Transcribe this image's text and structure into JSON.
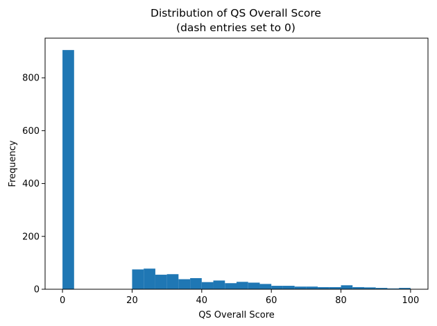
{
  "chart_data": {
    "type": "bar",
    "title": "Distribution of QS Overall Score",
    "subtitle": "(dash entries set to 0)",
    "xlabel": "QS Overall Score",
    "ylabel": "Frequency",
    "xlim": [
      -5,
      105
    ],
    "ylim": [
      0,
      950
    ],
    "xticks": [
      0,
      20,
      40,
      60,
      80,
      100
    ],
    "yticks": [
      0,
      200,
      400,
      600,
      800
    ],
    "bar_color": "#1f77b4",
    "grid": false,
    "bins": [
      {
        "x0": 0.0,
        "x1": 3.33,
        "value": 905
      },
      {
        "x0": 20.0,
        "x1": 23.33,
        "value": 75
      },
      {
        "x0": 23.33,
        "x1": 26.67,
        "value": 78
      },
      {
        "x0": 26.67,
        "x1": 30.0,
        "value": 55
      },
      {
        "x0": 30.0,
        "x1": 33.33,
        "value": 57
      },
      {
        "x0": 33.33,
        "x1": 36.67,
        "value": 38
      },
      {
        "x0": 36.67,
        "x1": 40.0,
        "value": 42
      },
      {
        "x0": 40.0,
        "x1": 43.33,
        "value": 27
      },
      {
        "x0": 43.33,
        "x1": 46.67,
        "value": 33
      },
      {
        "x0": 46.67,
        "x1": 50.0,
        "value": 23
      },
      {
        "x0": 50.0,
        "x1": 53.33,
        "value": 28
      },
      {
        "x0": 53.33,
        "x1": 56.67,
        "value": 25
      },
      {
        "x0": 56.67,
        "x1": 60.0,
        "value": 20
      },
      {
        "x0": 60.0,
        "x1": 63.33,
        "value": 13
      },
      {
        "x0": 63.33,
        "x1": 66.67,
        "value": 13
      },
      {
        "x0": 66.67,
        "x1": 70.0,
        "value": 10
      },
      {
        "x0": 70.0,
        "x1": 73.33,
        "value": 10
      },
      {
        "x0": 73.33,
        "x1": 76.67,
        "value": 8
      },
      {
        "x0": 76.67,
        "x1": 80.0,
        "value": 8
      },
      {
        "x0": 80.0,
        "x1": 83.33,
        "value": 15
      },
      {
        "x0": 83.33,
        "x1": 86.67,
        "value": 8
      },
      {
        "x0": 86.67,
        "x1": 90.0,
        "value": 7
      },
      {
        "x0": 90.0,
        "x1": 93.33,
        "value": 5
      },
      {
        "x0": 93.33,
        "x1": 96.67,
        "value": 3
      },
      {
        "x0": 96.67,
        "x1": 100.0,
        "value": 5
      }
    ]
  }
}
